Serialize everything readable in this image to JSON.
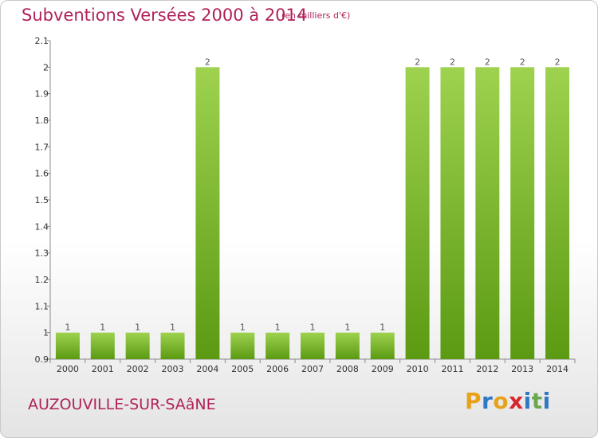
{
  "header": {
    "title": "Subventions Versées 2000 à 2014",
    "unit": "(en milliers d'€)"
  },
  "footer": {
    "commune": "AUZOUVILLE-SUR-SAâNE",
    "logo": [
      "P",
      "r",
      "o",
      "x",
      "i",
      "t",
      "i"
    ]
  },
  "colors": {
    "title": "#b0225a",
    "bar_light": "#9ed24f",
    "bar_dark": "#5b9a12",
    "logo": [
      "#e8a21a",
      "#2f78c4",
      "#e8a21a",
      "#d9262e",
      "#2f78c4",
      "#6aa84f",
      "#2f78c4"
    ]
  },
  "chart_data": {
    "type": "bar",
    "categories": [
      "2000",
      "2001",
      "2002",
      "2003",
      "2004",
      "2005",
      "2006",
      "2007",
      "2008",
      "2009",
      "2010",
      "2011",
      "2012",
      "2013",
      "2014"
    ],
    "values": [
      1,
      1,
      1,
      1,
      2,
      1,
      1,
      1,
      1,
      1,
      2,
      2,
      2,
      2,
      2
    ],
    "data_labels": [
      "1",
      "1",
      "1",
      "1",
      "2",
      "1",
      "1",
      "1",
      "1",
      "1",
      "2",
      "2",
      "2",
      "2",
      "2"
    ],
    "yticks": [
      "0.9",
      "1",
      "1.1",
      "1.2",
      "1.3",
      "1.4",
      "1.5",
      "1.6",
      "1.7",
      "1.8",
      "1.9",
      "2",
      "2.1"
    ],
    "ylim": [
      0.9,
      2.1
    ],
    "grid": false,
    "title": "Subventions Versées 2000 à 2014",
    "xlabel": "",
    "ylabel": ""
  }
}
